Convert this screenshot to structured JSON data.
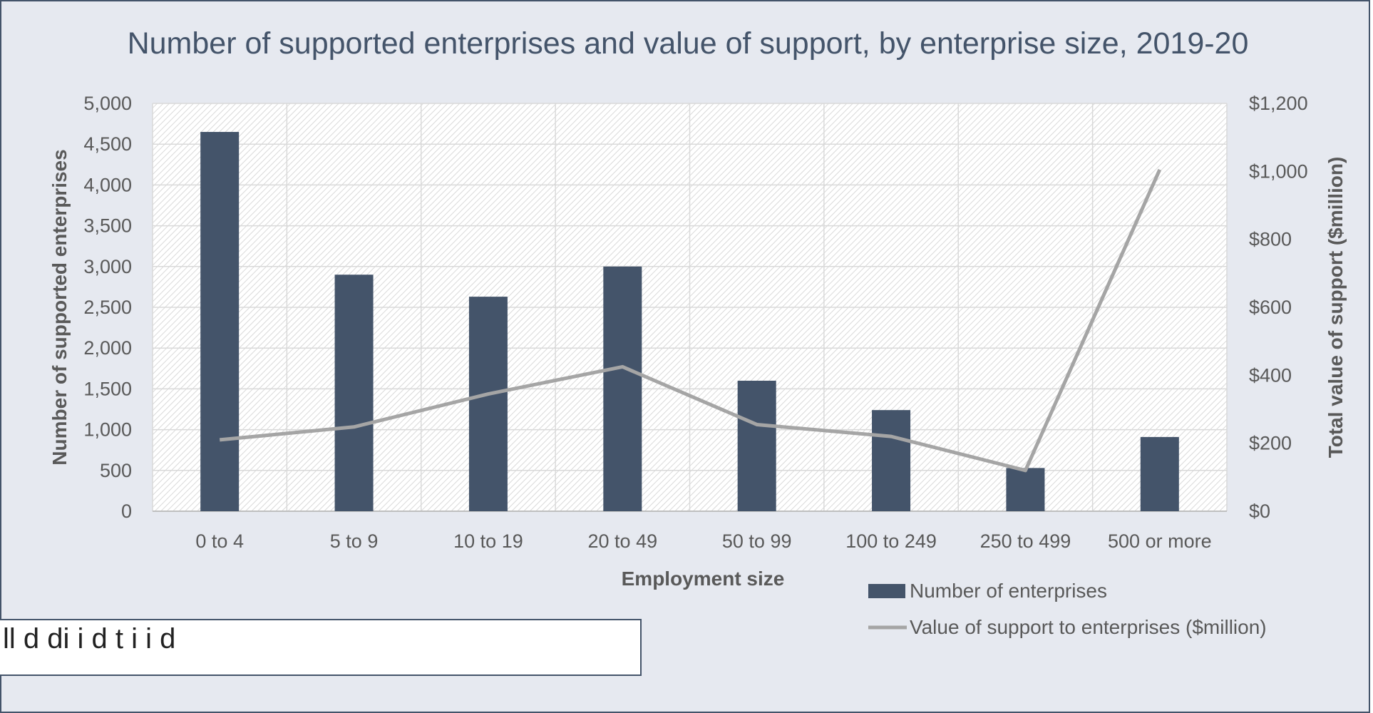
{
  "chart_data": {
    "type": "bar",
    "title": "Number of supported enterprises and value of support, by enterprise size, 2019-20",
    "xlabel": "Employment size",
    "ylabel": "Number of supported enterprises",
    "y2label": "Total value of support ($million)",
    "categories": [
      "0 to 4",
      "5 to 9",
      "10 to 19",
      "20 to 49",
      "50 to 99",
      "100 to 249",
      "250 to 499",
      "500 or more"
    ],
    "ylim": [
      0,
      5000
    ],
    "y_ticks": [
      "0",
      "500",
      "1,000",
      "1,500",
      "2,000",
      "2,500",
      "3,000",
      "3,500",
      "4,000",
      "4,500",
      "5,000"
    ],
    "y2lim": [
      0,
      1200
    ],
    "y2_ticks": [
      "$0",
      "$200",
      "$400",
      "$600",
      "$800",
      "$1,000",
      "$1,200"
    ],
    "grid": true,
    "legend_position": "bottom-right",
    "series": [
      {
        "name": "Number of enterprises",
        "type": "bar",
        "axis": "left",
        "color": "#44546a",
        "values": [
          4650,
          2900,
          2630,
          3000,
          1600,
          1240,
          530,
          910
        ]
      },
      {
        "name": "Value of support to enterprises ($million)",
        "type": "line",
        "axis": "right",
        "color": "#a5a5a5",
        "values": [
          210,
          248,
          345,
          425,
          255,
          220,
          120,
          1005
        ]
      }
    ]
  },
  "overlay": {
    "text": "ll    d    di         i     d        t     i          i  d"
  }
}
